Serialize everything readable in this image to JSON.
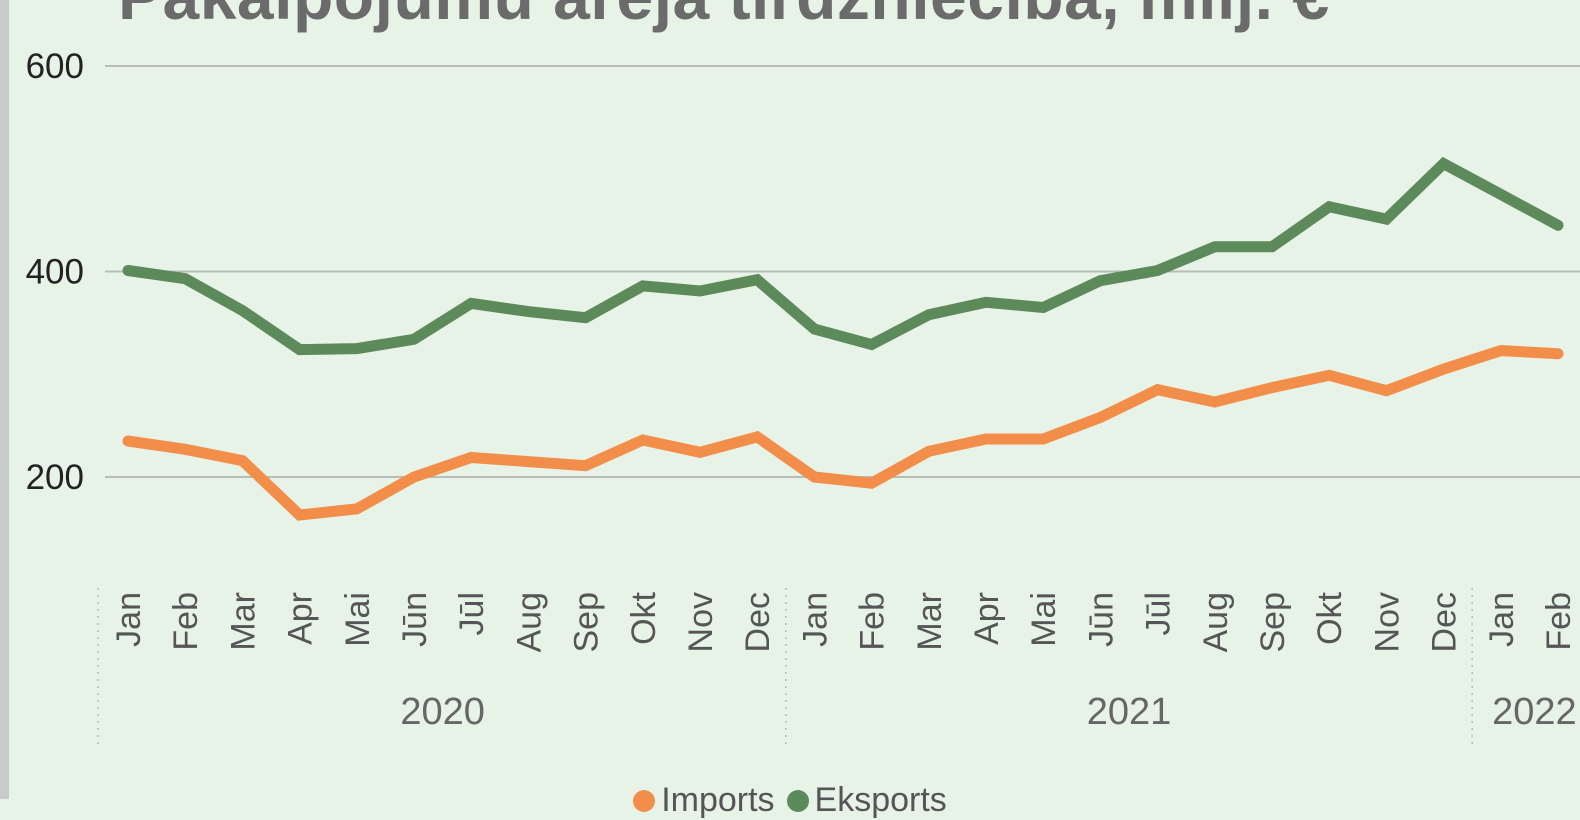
{
  "chart_data": {
    "type": "line",
    "title": "Pakalpojumu ārējā tirdzniecība, milj. €",
    "categories": [
      "Jan",
      "Feb",
      "Mar",
      "Apr",
      "Mai",
      "Jūn",
      "Jūl",
      "Aug",
      "Sep",
      "Okt",
      "Nov",
      "Dec",
      "Jan",
      "Feb",
      "Mar",
      "Apr",
      "Mai",
      "Jūn",
      "Jūl",
      "Aug",
      "Sep",
      "Okt",
      "Nov",
      "Dec",
      "Jan",
      "Feb"
    ],
    "year_groups": [
      {
        "label": "2020",
        "count": 12
      },
      {
        "label": "2021",
        "count": 12
      },
      {
        "label": "2022",
        "count": 2
      }
    ],
    "series": [
      {
        "name": "Imports",
        "color": "#f28e49",
        "values": [
          235,
          227,
          216,
          163,
          169,
          200,
          219,
          215,
          211,
          236,
          224,
          239,
          200,
          194,
          225,
          237,
          237,
          258,
          285,
          273,
          287,
          299,
          284,
          305,
          323,
          320
        ]
      },
      {
        "name": "Eksports",
        "color": "#5d8a5a",
        "values": [
          401,
          393,
          362,
          324,
          325,
          334,
          369,
          361,
          355,
          386,
          381,
          392,
          344,
          329,
          358,
          370,
          365,
          391,
          401,
          424,
          424,
          463,
          451,
          505,
          475,
          445
        ]
      }
    ],
    "ylim": [
      110,
      640
    ],
    "yticks": [
      200,
      400,
      600
    ],
    "grid": true,
    "legend": "bottom-center"
  }
}
